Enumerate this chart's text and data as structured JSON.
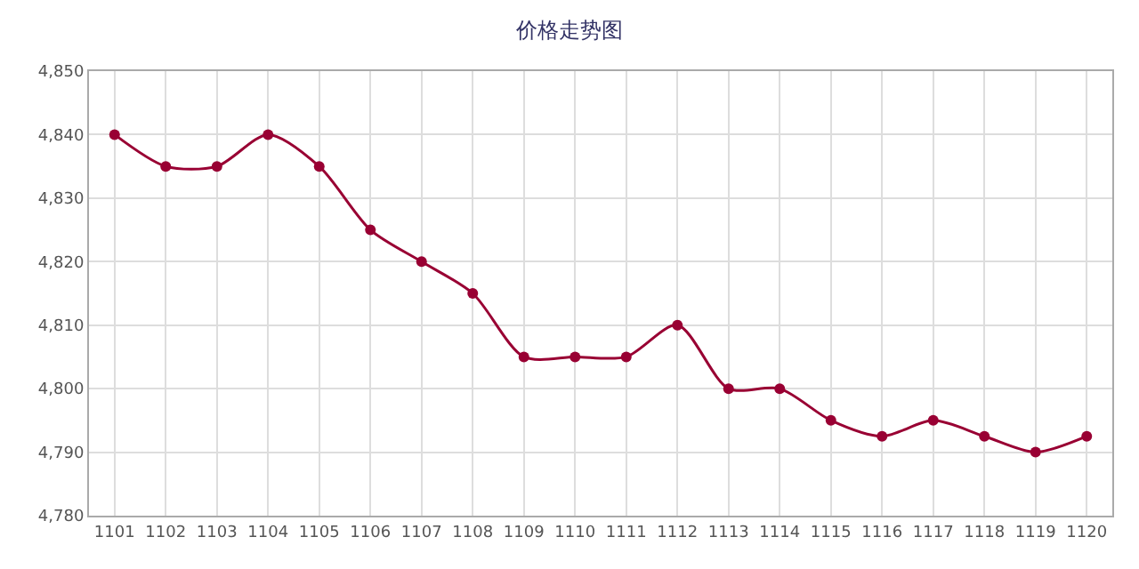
{
  "chart_data": {
    "type": "line",
    "title": "价格走势图",
    "categories": [
      "1101",
      "1102",
      "1103",
      "1104",
      "1105",
      "1106",
      "1107",
      "1108",
      "1109",
      "1110",
      "1111",
      "1112",
      "1113",
      "1114",
      "1115",
      "1116",
      "1117",
      "1118",
      "1119",
      "1120"
    ],
    "values": [
      4840,
      4835,
      4835,
      4840,
      4835,
      4825,
      4820,
      4815,
      4805,
      4805,
      4805,
      4810,
      4800,
      4800,
      4795,
      4792.5,
      4795,
      4792.5,
      4790,
      4792.5
    ],
    "color": "#990033",
    "marker": "circle",
    "line_style": "solid",
    "grid": true,
    "legend": false,
    "ylim": [
      4780,
      4850
    ],
    "yticks": [
      {
        "value": 4780,
        "label": "4,780"
      },
      {
        "value": 4790,
        "label": "4,790"
      },
      {
        "value": 4800,
        "label": "4,800"
      },
      {
        "value": 4810,
        "label": "4,810"
      },
      {
        "value": 4820,
        "label": "4,820"
      },
      {
        "value": 4830,
        "label": "4,830"
      },
      {
        "value": 4840,
        "label": "4,840"
      },
      {
        "value": 4850,
        "label": "4,850"
      }
    ]
  }
}
